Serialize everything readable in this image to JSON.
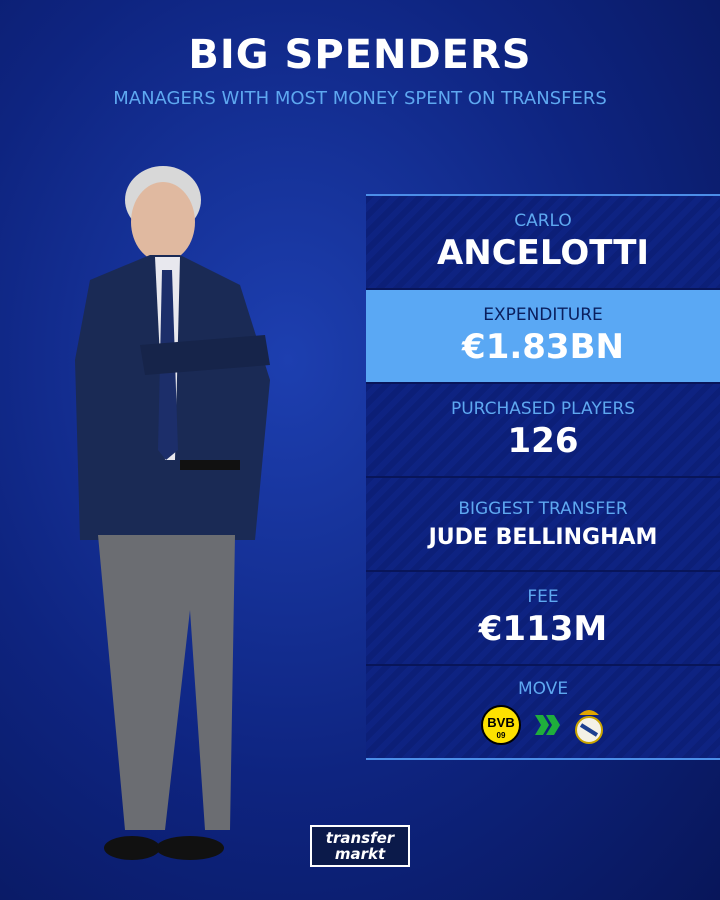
{
  "header": {
    "title": "BIG SPENDERS",
    "subtitle": "MANAGERS WITH MOST MONEY SPENT ON TRANSFERS"
  },
  "manager": {
    "first_name": "CARLO",
    "last_name": "ANCELOTTI"
  },
  "stats": {
    "expenditure": {
      "label": "EXPENDITURE",
      "value": "€1.83BN"
    },
    "purchased": {
      "label": "PURCHASED PLAYERS",
      "value": "126"
    },
    "biggest": {
      "label": "BIGGEST TRANSFER",
      "value": "JUDE BELLINGHAM"
    },
    "fee": {
      "label": "FEE",
      "value": "€113M"
    },
    "move": {
      "label": "MOVE",
      "from": "BVB 09",
      "to": "Real Madrid",
      "arrow_color": "#1fae3c"
    }
  },
  "brand": {
    "line1": "transfer",
    "line2": "markt"
  },
  "colors": {
    "accent": "#5aa8f4",
    "background": "#0e2480"
  }
}
